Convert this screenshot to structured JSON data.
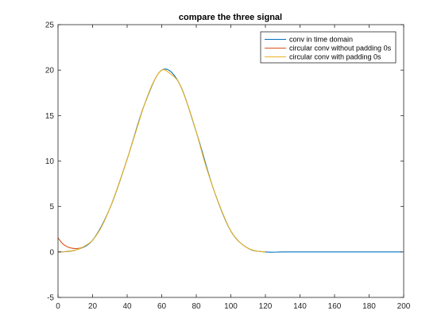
{
  "chart_data": {
    "type": "line",
    "title": "compare the three signal",
    "xlabel": "",
    "ylabel": "",
    "xlim": [
      0,
      200
    ],
    "ylim": [
      -5,
      25
    ],
    "xticks": [
      0,
      20,
      40,
      60,
      80,
      100,
      120,
      140,
      160,
      180,
      200
    ],
    "yticks": [
      -5,
      0,
      5,
      10,
      15,
      20,
      25
    ],
    "grid": false,
    "legend_position": "top-right",
    "series": [
      {
        "name": "conv in time domain",
        "color": "#0072BD",
        "x": [
          0,
          10,
          20,
          30,
          40,
          50,
          60,
          70,
          80,
          90,
          100,
          110,
          120,
          130,
          140,
          150,
          160,
          170,
          180,
          190,
          199
        ],
        "y": [
          0,
          0.2,
          1.3,
          4.8,
          10.2,
          16.2,
          20.0,
          18.6,
          13.2,
          6.9,
          2.3,
          0.4,
          0,
          0,
          0,
          0,
          0,
          0,
          0,
          0,
          0
        ]
      },
      {
        "name": "circular conv without padding 0s",
        "color": "#D95319",
        "x": [
          0,
          2,
          4,
          6,
          8,
          10,
          12,
          14
        ],
        "y": [
          1.55,
          1.05,
          0.72,
          0.52,
          0.42,
          0.38,
          0.4,
          0.5
        ]
      },
      {
        "name": "circular conv with padding 0s",
        "color": "#EDB120",
        "x": [
          0,
          5,
          10,
          15,
          20,
          25,
          30,
          35,
          40,
          45,
          50,
          55,
          60,
          65,
          70,
          75,
          80,
          85,
          90,
          95,
          100,
          105,
          110,
          115,
          120
        ],
        "y": [
          0,
          0.05,
          0.2,
          0.6,
          1.3,
          2.7,
          4.8,
          7.4,
          10.2,
          13.2,
          16.2,
          18.6,
          20.0,
          19.6,
          18.6,
          16.2,
          13.2,
          9.8,
          6.9,
          4.4,
          2.3,
          1.1,
          0.4,
          0.1,
          0
        ]
      }
    ]
  }
}
